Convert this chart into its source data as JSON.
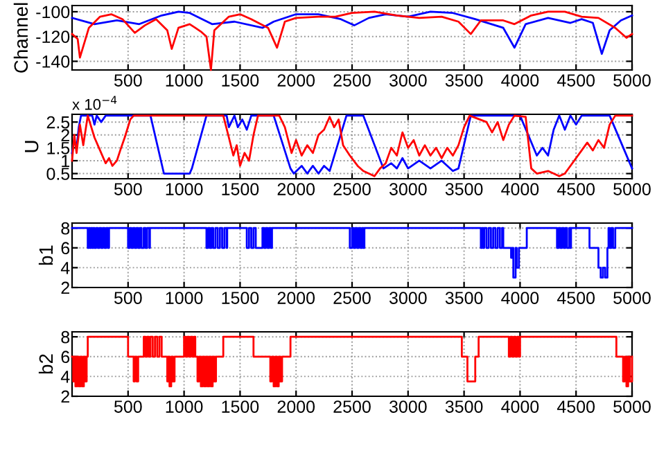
{
  "chart_data": [
    {
      "type": "line",
      "ylabel": "Channel",
      "xlim": [
        0,
        5000
      ],
      "xticks": [
        500,
        1000,
        1500,
        2000,
        2500,
        3000,
        3500,
        4000,
        4500,
        5000
      ],
      "ylim": [
        -147,
        -95
      ],
      "yticks": [
        -140,
        -120,
        -100
      ],
      "grid": true,
      "line_style": "solid",
      "series": [
        {
          "color": "#0000ff",
          "x": [
            0,
            200,
            400,
            600,
            800,
            950,
            1050,
            1250,
            1450,
            1700,
            1800,
            2000,
            2200,
            2400,
            2520,
            2650,
            2800,
            3000,
            3200,
            3400,
            3600,
            3850,
            3950,
            4050,
            4250,
            4450,
            4550,
            4650,
            4730,
            4800,
            4900,
            5000
          ],
          "values": [
            -105,
            -110,
            -107,
            -110,
            -103,
            -100,
            -101,
            -110,
            -108,
            -113,
            -108,
            -102,
            -102,
            -106,
            -111,
            -105,
            -102,
            -104,
            -100,
            -101,
            -106,
            -113,
            -129,
            -110,
            -105,
            -109,
            -106,
            -109,
            -134,
            -115,
            -107,
            -103
          ]
        },
        {
          "color": "#ff0000",
          "x": [
            0,
            50,
            70,
            150,
            250,
            350,
            450,
            560,
            650,
            750,
            850,
            890,
            950,
            1050,
            1100,
            1150,
            1200,
            1240,
            1270,
            1400,
            1500,
            1600,
            1750,
            1830,
            1900,
            2000,
            2200,
            2350,
            2500,
            2700,
            2900,
            3100,
            3300,
            3450,
            3560,
            3650,
            3850,
            3950,
            4100,
            4250,
            4400,
            4550,
            4700,
            4850,
            4950,
            5000
          ],
          "values": [
            -118,
            -122,
            -137,
            -113,
            -104,
            -102,
            -106,
            -117,
            -111,
            -106,
            -115,
            -130,
            -113,
            -110,
            -113,
            -116,
            -120,
            -147,
            -115,
            -104,
            -102,
            -106,
            -113,
            -129,
            -108,
            -105,
            -104,
            -104,
            -101,
            -100,
            -103,
            -105,
            -104,
            -108,
            -118,
            -107,
            -107,
            -110,
            -103,
            -100,
            -100,
            -104,
            -105,
            -113,
            -121,
            -118
          ]
        }
      ]
    },
    {
      "type": "line",
      "ylabel": "U",
      "annotations": [
        "x 10$^{−4}$"
      ],
      "xlim": [
        0,
        5000
      ],
      "xticks": [
        500,
        1000,
        1500,
        2000,
        2500,
        3000,
        3500,
        4000,
        4500,
        5000
      ],
      "ylim": [
        0.3,
        2.8
      ],
      "yticks": [
        0.5,
        1,
        1.5,
        2,
        2.5
      ],
      "grid": true,
      "line_style": "solid",
      "series": [
        {
          "color": "#0000ff",
          "x": [
            0,
            20,
            40,
            60,
            80,
            180,
            200,
            220,
            260,
            300,
            700,
            820,
            1050,
            1070,
            1200,
            1380,
            1400,
            1450,
            1480,
            1520,
            1560,
            1600,
            1800,
            1950,
            1980,
            2050,
            2100,
            2150,
            2200,
            2250,
            2300,
            2450,
            2600,
            2780,
            2850,
            2900,
            2950,
            3000,
            3100,
            3200,
            3300,
            3400,
            3450,
            3560,
            4000,
            4150,
            4200,
            4250,
            4300,
            4350,
            4400,
            4450,
            4500,
            4550,
            4800,
            5000
          ],
          "values": [
            1.3,
            1.8,
            1.5,
            2.3,
            2.75,
            2.75,
            2.4,
            2.75,
            2.5,
            2.75,
            2.75,
            0.5,
            0.5,
            0.7,
            2.75,
            2.75,
            2.3,
            2.75,
            2.3,
            2.6,
            2.2,
            2.75,
            2.75,
            0.7,
            0.5,
            0.8,
            0.5,
            0.8,
            0.5,
            0.8,
            0.6,
            2.75,
            2.75,
            0.7,
            0.9,
            0.7,
            1.1,
            0.7,
            1.0,
            0.7,
            1.0,
            0.6,
            0.7,
            2.75,
            2.75,
            1.2,
            1.5,
            1.2,
            2.2,
            2.75,
            2.2,
            2.75,
            2.4,
            2.75,
            2.75,
            0.7
          ]
        },
        {
          "color": "#ff0000",
          "x": [
            0,
            20,
            40,
            70,
            100,
            140,
            200,
            250,
            300,
            330,
            360,
            400,
            430,
            470,
            520,
            550,
            1350,
            1400,
            1440,
            1470,
            1500,
            1540,
            1580,
            1620,
            1660,
            1850,
            1900,
            1960,
            2000,
            2050,
            2100,
            2150,
            2200,
            2250,
            2300,
            2340,
            2380,
            2420,
            2480,
            2550,
            2600,
            2650,
            2700,
            2750,
            2800,
            2850,
            2900,
            2950,
            3000,
            3050,
            3100,
            3150,
            3200,
            3250,
            3300,
            3350,
            3400,
            3450,
            3500,
            3550,
            3700,
            3750,
            3800,
            3850,
            3900,
            3950,
            4050,
            4100,
            4150,
            4250,
            4350,
            4400,
            4500,
            4550,
            4600,
            4650,
            4700,
            4750,
            4800,
            4850,
            5000
          ],
          "values": [
            1.0,
            2.0,
            1.3,
            2.4,
            1.6,
            2.75,
            1.9,
            1.4,
            0.9,
            1.1,
            0.8,
            1.0,
            1.4,
            1.9,
            2.6,
            2.75,
            2.75,
            1.9,
            1.2,
            1.6,
            0.8,
            1.3,
            1.0,
            2.0,
            2.75,
            2.75,
            2.3,
            1.3,
            1.8,
            1.2,
            1.6,
            1.3,
            2.0,
            2.2,
            2.7,
            2.3,
            2.6,
            1.6,
            1.2,
            0.8,
            0.6,
            0.5,
            0.4,
            0.7,
            0.9,
            1.5,
            1.2,
            2.1,
            1.5,
            1.8,
            1.2,
            1.6,
            1.2,
            1.5,
            1.1,
            1.5,
            1.2,
            1.6,
            2.3,
            2.75,
            2.5,
            2.1,
            2.5,
            1.8,
            2.4,
            2.75,
            2.7,
            0.7,
            0.5,
            0.6,
            0.4,
            0.5,
            1.1,
            1.4,
            1.7,
            1.4,
            1.8,
            1.5,
            2.4,
            2.75,
            2.75
          ]
        }
      ]
    },
    {
      "type": "step",
      "ylabel": "b1",
      "xlim": [
        0,
        5000
      ],
      "xticks": [
        500,
        1000,
        1500,
        2000,
        2500,
        3000,
        3500,
        4000,
        4500,
        5000
      ],
      "ylim": [
        2,
        8.5
      ],
      "yticks": [
        2,
        4,
        6,
        8
      ],
      "grid": true,
      "line_style": "solid",
      "series": [
        {
          "color": "#0000ff",
          "x": [
            0,
            140,
            150,
            160,
            170,
            180,
            190,
            200,
            215,
            230,
            245,
            260,
            275,
            290,
            305,
            320,
            330,
            500,
            515,
            530,
            545,
            560,
            575,
            590,
            605,
            620,
            640,
            655,
            670,
            690,
            695,
            1200,
            1215,
            1230,
            1245,
            1260,
            1280,
            1300,
            1320,
            1340,
            1360,
            1380,
            1385,
            1560,
            1580,
            1600,
            1620,
            1640,
            1700,
            1715,
            1730,
            1745,
            1760,
            1775,
            1785,
            2480,
            2500,
            2515,
            2530,
            2545,
            2560,
            2575,
            2590,
            2600,
            2610,
            3650,
            3660,
            3670,
            3680,
            3700,
            3720,
            3740,
            3760,
            3780,
            3800,
            3820,
            3840,
            3850,
            3920,
            3930,
            3940,
            3960,
            3970,
            3990,
            4060,
            4330,
            4345,
            4360,
            4375,
            4390,
            4405,
            4420,
            4440,
            4450,
            4455,
            4620,
            4700,
            4720,
            4740,
            4760,
            4780,
            4790,
            4800,
            4815,
            4830,
            4850,
            5000
          ],
          "values": [
            8,
            6,
            8,
            6,
            8,
            6,
            8,
            6,
            8,
            6,
            8,
            6,
            8,
            6,
            8,
            6,
            8,
            6,
            8,
            6,
            8,
            6,
            8,
            6,
            8,
            6,
            8,
            6,
            8,
            6,
            8,
            6,
            8,
            6,
            8,
            6,
            8,
            6,
            8,
            6,
            8,
            6,
            8,
            6,
            8,
            6,
            8,
            6,
            8,
            6,
            8,
            6,
            8,
            6,
            8,
            6,
            8,
            6,
            8,
            6,
            8,
            6,
            8,
            6,
            8,
            6,
            8,
            6,
            8,
            6,
            8,
            6,
            8,
            6,
            8,
            6,
            8,
            6,
            5,
            6,
            3,
            6,
            4,
            6,
            8,
            6,
            8,
            6,
            8,
            6,
            8,
            6,
            8,
            6,
            8,
            6,
            4,
            3,
            4,
            3,
            6,
            8,
            6,
            8,
            6,
            8,
            8
          ]
        }
      ]
    },
    {
      "type": "step",
      "ylabel": "b2",
      "xlim": [
        0,
        5000
      ],
      "xticks": [
        500,
        1000,
        1500,
        2000,
        2500,
        3000,
        3500,
        4000,
        4500,
        5000
      ],
      "ylim": [
        2,
        8.5
      ],
      "yticks": [
        2,
        4,
        6,
        8
      ],
      "grid": true,
      "line_style": "solid",
      "series": [
        {
          "color": "#ff0000",
          "x": [
            0,
            10,
            20,
            30,
            45,
            60,
            75,
            90,
            105,
            120,
            130,
            140,
            500,
            550,
            560,
            575,
            590,
            640,
            655,
            670,
            685,
            700,
            720,
            740,
            760,
            780,
            800,
            850,
            860,
            870,
            885,
            900,
            915,
            1000,
            1015,
            1030,
            1045,
            1060,
            1075,
            1090,
            1100,
            1120,
            1135,
            1150,
            1165,
            1180,
            1195,
            1210,
            1225,
            1240,
            1255,
            1270,
            1285,
            1350,
            1620,
            1770,
            1785,
            1800,
            1815,
            1830,
            1845,
            1860,
            1875,
            1950,
            3480,
            3530,
            3600,
            3630,
            3900,
            3915,
            3930,
            3945,
            3960,
            3975,
            3990,
            4000,
            4860,
            4920,
            4935,
            4950,
            4965,
            4980,
            5000
          ],
          "values": [
            6,
            3.5,
            6,
            3,
            6,
            3,
            6,
            3,
            6,
            3.5,
            6,
            8,
            6,
            3.5,
            6,
            3.5,
            6,
            8,
            6,
            8,
            6,
            8,
            6,
            8,
            6,
            8,
            6,
            3.5,
            6,
            3,
            6,
            3.5,
            6,
            8,
            6,
            8,
            6,
            8,
            6,
            8,
            6,
            3.5,
            6,
            3,
            6,
            3,
            6,
            3,
            6,
            3,
            6,
            3.5,
            6,
            8,
            6,
            3.5,
            6,
            3,
            6,
            3,
            6,
            3.5,
            6,
            8,
            6,
            3.5,
            6,
            8,
            6,
            8,
            6,
            8,
            6,
            8,
            6,
            8,
            6,
            3.5,
            6,
            3,
            6,
            3.5,
            6
          ]
        }
      ]
    }
  ]
}
